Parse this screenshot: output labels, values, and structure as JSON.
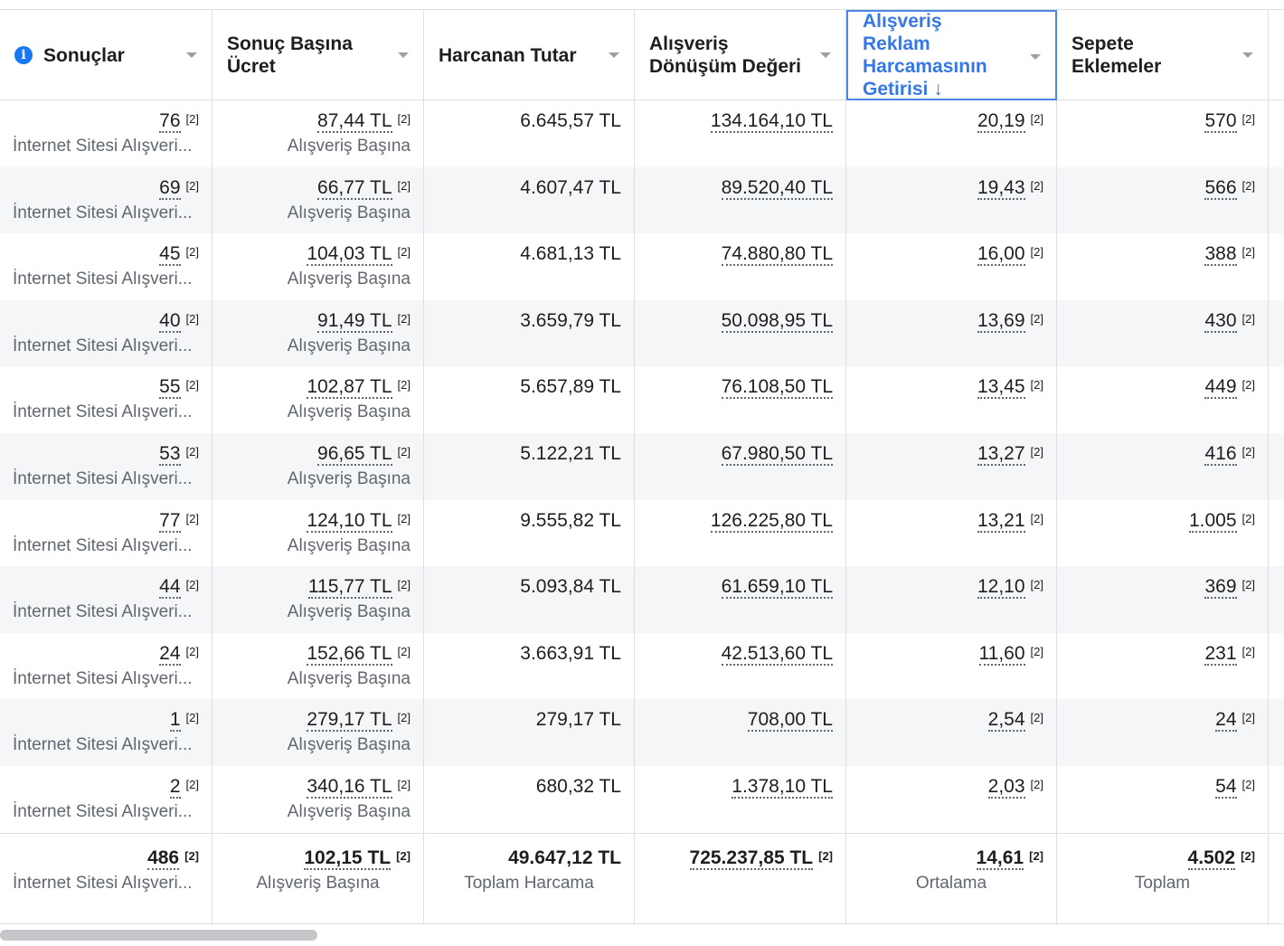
{
  "headers": [
    {
      "label": "Sonuçlar",
      "info_icon": "info-icon",
      "active": false
    },
    {
      "label": "Sonuç Başına Ücret",
      "active": false
    },
    {
      "label": "Harcanan Tutar",
      "active": false
    },
    {
      "label": "Alışveriş Dönüşüm Değeri",
      "active": false
    },
    {
      "label": "Alışveriş Reklam Harcamasının Getirisi ↓",
      "active": true
    },
    {
      "label": "Sepete Eklemeler",
      "active": false
    }
  ],
  "footnote": "[2]",
  "rows": [
    {
      "results": "76",
      "results_sub": "İnternet Sitesi Alışveri...",
      "cpr": "87,44 TL",
      "cpr_sub": "Alışveriş Başına",
      "spent": "6.645,57 TL",
      "conv_value": "134.164,10 TL",
      "roas": "20,19",
      "cart": "570"
    },
    {
      "results": "69",
      "results_sub": "İnternet Sitesi Alışveri...",
      "cpr": "66,77 TL",
      "cpr_sub": "Alışveriş Başına",
      "spent": "4.607,47 TL",
      "conv_value": "89.520,40 TL",
      "roas": "19,43",
      "cart": "566"
    },
    {
      "results": "45",
      "results_sub": "İnternet Sitesi Alışveri...",
      "cpr": "104,03 TL",
      "cpr_sub": "Alışveriş Başına",
      "spent": "4.681,13 TL",
      "conv_value": "74.880,80 TL",
      "roas": "16,00",
      "cart": "388"
    },
    {
      "results": "40",
      "results_sub": "İnternet Sitesi Alışveri...",
      "cpr": "91,49 TL",
      "cpr_sub": "Alışveriş Başına",
      "spent": "3.659,79 TL",
      "conv_value": "50.098,95 TL",
      "roas": "13,69",
      "cart": "430"
    },
    {
      "results": "55",
      "results_sub": "İnternet Sitesi Alışveri...",
      "cpr": "102,87 TL",
      "cpr_sub": "Alışveriş Başına",
      "spent": "5.657,89 TL",
      "conv_value": "76.108,50 TL",
      "roas": "13,45",
      "cart": "449"
    },
    {
      "results": "53",
      "results_sub": "İnternet Sitesi Alışveri...",
      "cpr": "96,65 TL",
      "cpr_sub": "Alışveriş Başına",
      "spent": "5.122,21 TL",
      "conv_value": "67.980,50 TL",
      "roas": "13,27",
      "cart": "416"
    },
    {
      "results": "77",
      "results_sub": "İnternet Sitesi Alışveri...",
      "cpr": "124,10 TL",
      "cpr_sub": "Alışveriş Başına",
      "spent": "9.555,82 TL",
      "conv_value": "126.225,80 TL",
      "roas": "13,21",
      "cart": "1.005"
    },
    {
      "results": "44",
      "results_sub": "İnternet Sitesi Alışveri...",
      "cpr": "115,77 TL",
      "cpr_sub": "Alışveriş Başına",
      "spent": "5.093,84 TL",
      "conv_value": "61.659,10 TL",
      "roas": "12,10",
      "cart": "369"
    },
    {
      "results": "24",
      "results_sub": "İnternet Sitesi Alışveri...",
      "cpr": "152,66 TL",
      "cpr_sub": "Alışveriş Başına",
      "spent": "3.663,91 TL",
      "conv_value": "42.513,60 TL",
      "roas": "11,60",
      "cart": "231"
    },
    {
      "results": "1",
      "results_sub": "İnternet Sitesi Alışveri...",
      "cpr": "279,17 TL",
      "cpr_sub": "Alışveriş Başına",
      "spent": "279,17 TL",
      "conv_value": "708,00 TL",
      "roas": "2,54",
      "cart": "24"
    },
    {
      "results": "2",
      "results_sub": "İnternet Sitesi Alışveri...",
      "cpr": "340,16 TL",
      "cpr_sub": "Alışveriş Başına",
      "spent": "680,32 TL",
      "conv_value": "1.378,10 TL",
      "roas": "2,03",
      "cart": "54"
    }
  ],
  "totals": {
    "results": "486",
    "results_sub": "İnternet Sitesi Alışveri...",
    "cpr": "102,15 TL",
    "cpr_sub": "Alışveriş Başına",
    "spent": "49.647,12 TL",
    "spent_sub": "Toplam Harcama",
    "conv_value": "725.237,85 TL",
    "roas": "14,61",
    "roas_sub": "Ortalama",
    "cart": "4.502",
    "cart_sub": "Toplam"
  },
  "colors": {
    "accent": "#3578e5",
    "row_alt": "#f5f6f7",
    "border": "#dddfe2"
  }
}
